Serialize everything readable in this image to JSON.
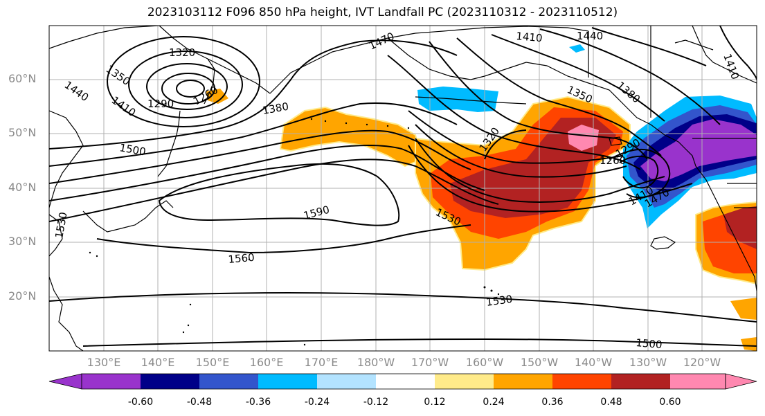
{
  "title": "2023103112 F096 850 hPa height, IVT Landfall PC (2023110312 - 2023110512)",
  "lat_labels": [
    "60°N",
    "50°N",
    "40°N",
    "30°N",
    "20°N"
  ],
  "lon_labels": [
    "130°E",
    "140°E",
    "150°E",
    "160°E",
    "170°E",
    "180°W",
    "170°W",
    "160°W",
    "150°W",
    "140°W",
    "130°W",
    "120°W"
  ],
  "contour_labels": [
    "1320",
    "1350",
    "1440",
    "1410",
    "1290",
    "1260",
    "1380",
    "1500",
    "1470",
    "1410",
    "1440",
    "1410",
    "1350",
    "1380",
    "1320",
    "1260",
    "1290",
    "1410",
    "1590",
    "1530",
    "1560",
    "1530",
    "1500",
    "1530",
    "1470"
  ],
  "colorbar": {
    "colors": [
      "#9933cc",
      "#000088",
      "#3355cc",
      "#00bbff",
      "#b3e3ff",
      "#ffffff",
      "#ffeb8a",
      "#ffa500",
      "#ff4400",
      "#b22222",
      "#ff88b0"
    ],
    "labels": [
      "-0.60",
      "-0.48",
      "-0.36",
      "-0.24",
      "-0.12",
      "0.12",
      "0.24",
      "0.36",
      "0.48",
      "0.60"
    ]
  },
  "colors": {
    "land": "#000000",
    "grid": "#b0b0b0",
    "contour": "#000000"
  }
}
